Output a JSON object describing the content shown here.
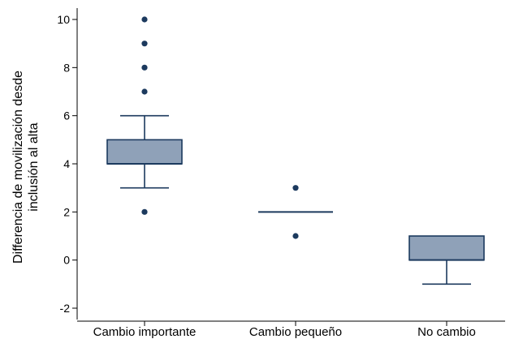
{
  "chart_data": {
    "type": "box",
    "title": "",
    "xlabel": "",
    "ylabel_lines": [
      "Differencia de movilización desde",
      "inclusión al alta"
    ],
    "ylim": [
      -2.3,
      10.6
    ],
    "yticks": [
      -2,
      0,
      2,
      4,
      6,
      8,
      10
    ],
    "categories": [
      "Cambio importante",
      "Cambio pequeño",
      "No cambio"
    ],
    "boxes": [
      {
        "category": "Cambio importante",
        "whisker_low": 3,
        "q1": 4,
        "median": 4,
        "q3": 5,
        "whisker_high": 6,
        "outliers": [
          2,
          7,
          8,
          9,
          10
        ]
      },
      {
        "category": "Cambio pequeño",
        "whisker_low": 2,
        "q1": 2,
        "median": 2,
        "q3": 2,
        "whisker_high": 2,
        "outliers": [
          1,
          3
        ]
      },
      {
        "category": "No cambio",
        "whisker_low": -1,
        "q1": 0,
        "median": 0,
        "q3": 1,
        "whisker_high": 1,
        "outliers": []
      }
    ],
    "colors": {
      "box_fill": "#8fa1b8",
      "line": "#1c3a5e",
      "outlier": "#1c3a5e",
      "axis": "#000000"
    }
  }
}
